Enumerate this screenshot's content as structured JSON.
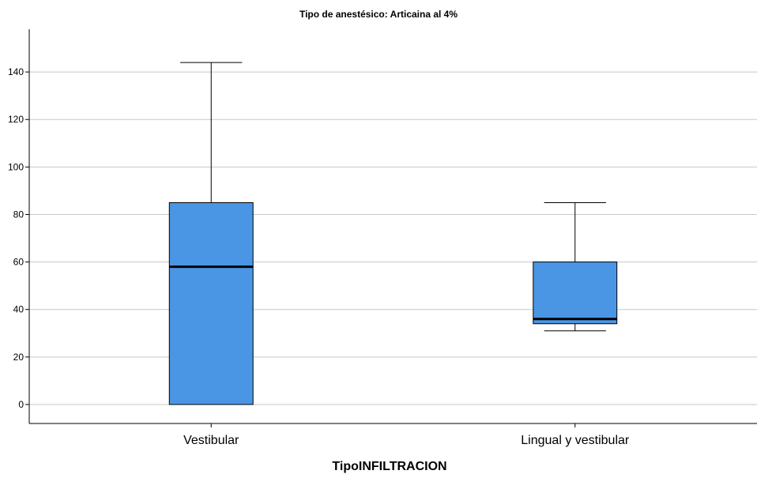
{
  "chart_data": {
    "type": "box",
    "title": "Tipo de anestésico: Articaina al 4%",
    "xlabel": "TipoINFILTRACION",
    "ylabel": "",
    "ylim": [
      -8,
      158
    ],
    "yticks": [
      0,
      20,
      40,
      60,
      80,
      100,
      120,
      140
    ],
    "grid": "horizontal",
    "box_color": "#4a96e4",
    "categories": [
      "Vestibular",
      "Lingual y vestibular"
    ],
    "boxes": [
      {
        "category": "Vestibular",
        "min": 0,
        "q1": 0,
        "median": 58,
        "q3": 85,
        "max": 144
      },
      {
        "category": "Lingual y vestibular",
        "min": 31,
        "q1": 34,
        "median": 36,
        "q3": 60,
        "max": 85
      }
    ]
  }
}
